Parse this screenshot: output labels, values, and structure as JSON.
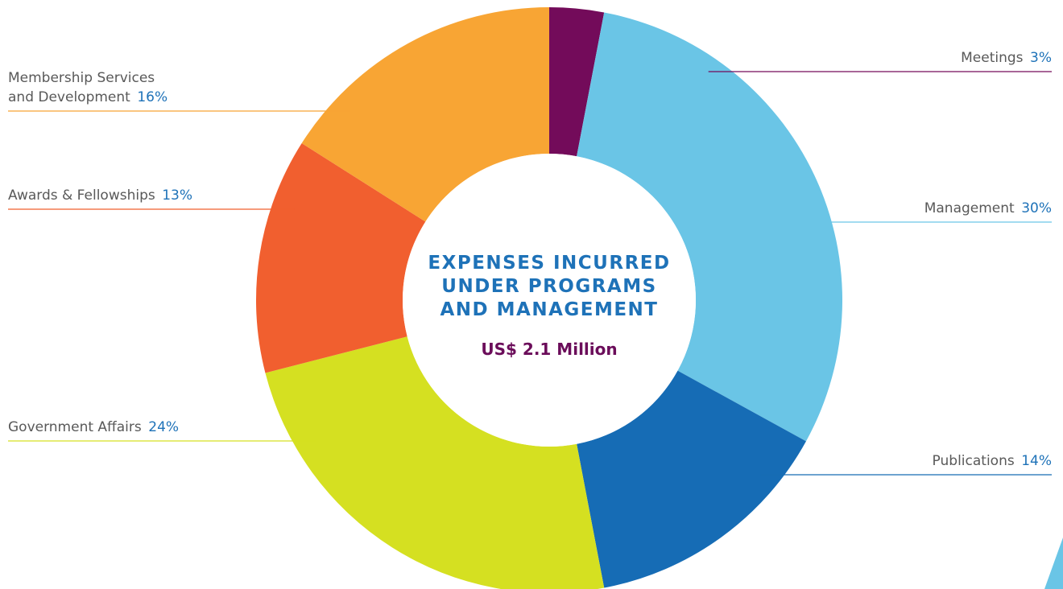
{
  "chart_data": {
    "type": "pie",
    "title_lines": [
      "EXPENSES INCURRED",
      "UNDER PROGRAMS",
      "AND MANAGEMENT"
    ],
    "total": "US$ 2.1 Million",
    "slices": [
      {
        "label_lines": [
          "Meetings"
        ],
        "pct_text": "3%",
        "value": 3,
        "color": "#730b5a",
        "line_color": "#730b5a"
      },
      {
        "label_lines": [
          "Management"
        ],
        "pct_text": "30%",
        "value": 30,
        "color": "#6ac5e6",
        "line_color": "#6ac5e6"
      },
      {
        "label_lines": [
          "Publications"
        ],
        "pct_text": "14%",
        "value": 14,
        "color": "#166cb5",
        "line_color": "#166cb5"
      },
      {
        "label_lines": [
          "Government Affairs"
        ],
        "pct_text": "24%",
        "value": 24,
        "color": "#d5e021",
        "line_color": "#d5e021"
      },
      {
        "label_lines": [
          "Awards & Fellowships"
        ],
        "pct_text": "13%",
        "value": 13,
        "color": "#f15f2f",
        "line_color": "#f15f2f"
      },
      {
        "label_lines": [
          "Membership Services",
          "and Development"
        ],
        "pct_text": "16%",
        "value": 16,
        "color": "#f8a534",
        "line_color": "#f8a534"
      }
    ]
  }
}
